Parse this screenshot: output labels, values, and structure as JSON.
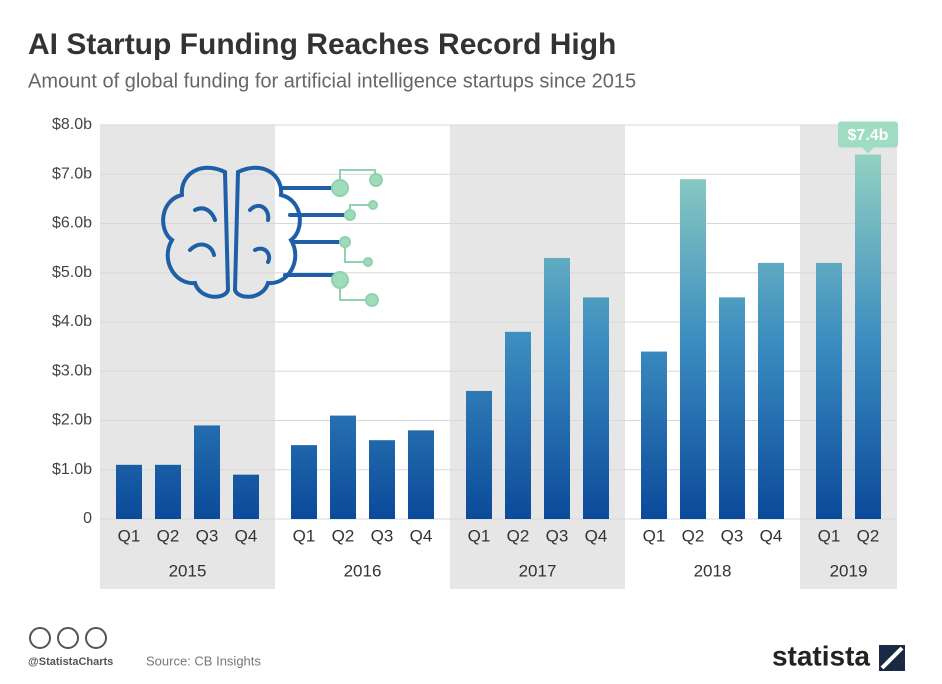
{
  "chart_data": {
    "type": "bar",
    "title": "AI Startup Funding Reaches Record High",
    "subtitle": "Amount of global funding for artificial intelligence startups since 2015",
    "groups": [
      {
        "name": "2015",
        "categories": [
          "Q1",
          "Q2",
          "Q3",
          "Q4"
        ],
        "values": [
          1.1,
          1.1,
          1.9,
          0.9
        ]
      },
      {
        "name": "2016",
        "categories": [
          "Q1",
          "Q2",
          "Q3",
          "Q4"
        ],
        "values": [
          1.5,
          2.1,
          1.6,
          1.8
        ]
      },
      {
        "name": "2017",
        "categories": [
          "Q1",
          "Q2",
          "Q3",
          "Q4"
        ],
        "values": [
          2.6,
          3.8,
          5.3,
          4.5
        ]
      },
      {
        "name": "2018",
        "categories": [
          "Q1",
          "Q2",
          "Q3",
          "Q4"
        ],
        "values": [
          3.4,
          6.9,
          4.5,
          5.2
        ]
      },
      {
        "name": "2019",
        "categories": [
          "Q1",
          "Q2"
        ],
        "values": [
          5.2,
          7.4
        ],
        "value_labels": [
          null,
          "$7.4b"
        ]
      }
    ],
    "ylim": [
      0,
      8
    ],
    "yticks": [
      0,
      {
        "value": 1,
        "label": "$1.0b"
      },
      {
        "value": 2,
        "label": "$2.0b"
      },
      {
        "value": 3,
        "label": "$3.0b"
      },
      {
        "value": 4,
        "label": "$4.0b"
      },
      {
        "value": 5,
        "label": "$5.0b"
      },
      {
        "value": 6,
        "label": "$6.0b"
      },
      {
        "value": 7,
        "label": "$7.0b"
      },
      {
        "value": 8,
        "label": "$8.0b"
      }
    ],
    "grid": true,
    "colors": [
      "#0b4a9a",
      "#3b8cc0",
      "#9fdcc2"
    ]
  },
  "footer": {
    "handle": "@StatistaCharts",
    "source": "Source: CB Insights",
    "brand": "statista"
  }
}
